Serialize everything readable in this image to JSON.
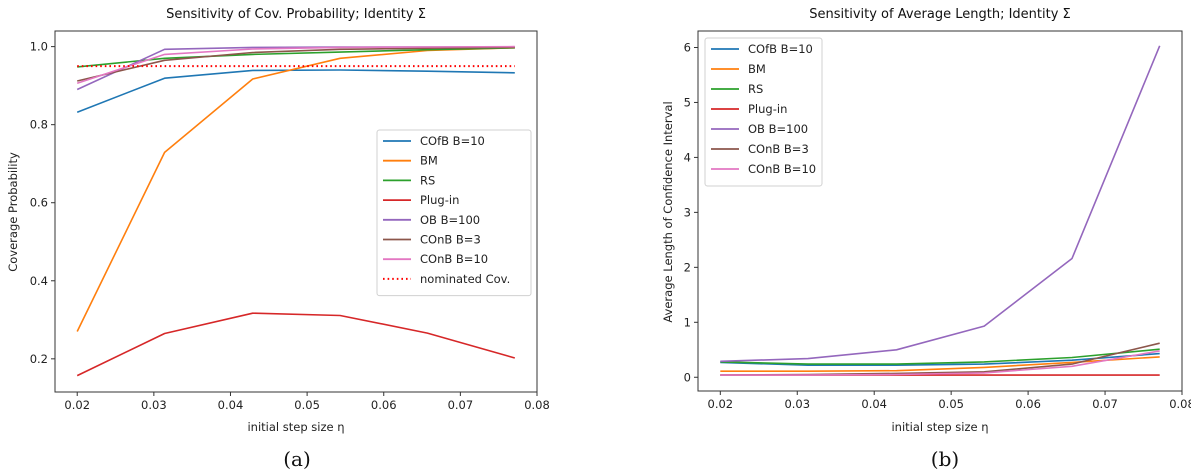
{
  "chart_data": [
    {
      "type": "line",
      "title": "Sensitivity of Cov. Probability; Identity Σ",
      "xlabel": "initial step size η",
      "ylabel": "Coverage Probability",
      "caption": "(a)",
      "xlim": [
        0.0171,
        0.08
      ],
      "ylim": [
        0.115,
        1.04
      ],
      "xticks": [
        0.02,
        0.03,
        0.04,
        0.05,
        0.06,
        0.07,
        0.08
      ],
      "xtick_labels": [
        "0.02",
        "0.03",
        "0.04",
        "0.05",
        "0.06",
        "0.07",
        "0.08"
      ],
      "yticks": [
        0.2,
        0.4,
        0.6,
        0.8,
        1.0
      ],
      "ytick_labels": [
        "0.2",
        "0.4",
        "0.6",
        "0.8",
        "1.0"
      ],
      "grid": false,
      "legend_position": "center-right",
      "x": [
        0.02,
        0.0314,
        0.0429,
        0.0543,
        0.0657,
        0.0771
      ],
      "series": [
        {
          "name": "COfB B=10",
          "color": "#1f77b4",
          "style": "solid",
          "values": [
            0.832,
            0.919,
            0.939,
            0.94,
            0.937,
            0.933
          ]
        },
        {
          "name": "BM",
          "color": "#ff7f0e",
          "style": "solid",
          "values": [
            0.27,
            0.729,
            0.917,
            0.97,
            0.99,
            0.997
          ]
        },
        {
          "name": "RS",
          "color": "#2ca02c",
          "style": "solid",
          "values": [
            0.948,
            0.97,
            0.98,
            0.986,
            0.992,
            0.997
          ]
        },
        {
          "name": "Plug-in",
          "color": "#d62728",
          "style": "solid",
          "values": [
            0.157,
            0.265,
            0.317,
            0.311,
            0.266,
            0.202
          ]
        },
        {
          "name": "OB B=100",
          "color": "#9467bd",
          "style": "solid",
          "values": [
            0.89,
            0.993,
            0.998,
            0.999,
            0.999,
            0.999
          ]
        },
        {
          "name": "COnB B=3",
          "color": "#8c564b",
          "style": "solid",
          "values": [
            0.912,
            0.965,
            0.985,
            0.993,
            0.996,
            0.998
          ]
        },
        {
          "name": "COnB B=10",
          "color": "#e377c2",
          "style": "solid",
          "values": [
            0.906,
            0.98,
            0.994,
            0.998,
            0.999,
            1.0
          ]
        },
        {
          "name": "nominated Cov.",
          "color": "#ff0000",
          "style": "dotted",
          "values": [
            0.95,
            0.95,
            0.95,
            0.95,
            0.95,
            0.95
          ]
        }
      ]
    },
    {
      "type": "line",
      "title": "Sensitivity of Average Length; Identity Σ",
      "xlabel": "initial step size η",
      "ylabel": "Average Length of Confidence Interval",
      "caption": "(b)",
      "xlim": [
        0.0171,
        0.08
      ],
      "ylim": [
        -0.25,
        6.3
      ],
      "xticks": [
        0.02,
        0.03,
        0.04,
        0.05,
        0.06,
        0.07,
        0.08
      ],
      "xtick_labels": [
        "0.02",
        "0.03",
        "0.04",
        "0.05",
        "0.06",
        "0.07",
        "0.08"
      ],
      "yticks": [
        0,
        1,
        2,
        3,
        4,
        5,
        6
      ],
      "ytick_labels": [
        "0",
        "1",
        "2",
        "3",
        "4",
        "5",
        "6"
      ],
      "grid": false,
      "legend_position": "top-left",
      "x": [
        0.02,
        0.0314,
        0.0429,
        0.0543,
        0.0657,
        0.0771
      ],
      "series": [
        {
          "name": "COfB B=10",
          "color": "#1f77b4",
          "style": "solid",
          "values": [
            0.27,
            0.22,
            0.22,
            0.24,
            0.31,
            0.43
          ]
        },
        {
          "name": "BM",
          "color": "#ff7f0e",
          "style": "solid",
          "values": [
            0.11,
            0.11,
            0.12,
            0.18,
            0.27,
            0.37
          ]
        },
        {
          "name": "RS",
          "color": "#2ca02c",
          "style": "solid",
          "values": [
            0.28,
            0.24,
            0.24,
            0.28,
            0.36,
            0.51
          ]
        },
        {
          "name": "Plug-in",
          "color": "#d62728",
          "style": "solid",
          "values": [
            0.04,
            0.04,
            0.04,
            0.04,
            0.04,
            0.04
          ]
        },
        {
          "name": "OB B=100",
          "color": "#9467bd",
          "style": "solid",
          "values": [
            0.29,
            0.34,
            0.5,
            0.93,
            2.16,
            6.03
          ]
        },
        {
          "name": "COnB B=3",
          "color": "#8c564b",
          "style": "solid",
          "values": [
            0.04,
            0.05,
            0.07,
            0.1,
            0.24,
            0.62
          ]
        },
        {
          "name": "COnB B=10",
          "color": "#e377c2",
          "style": "solid",
          "values": [
            0.04,
            0.04,
            0.05,
            0.08,
            0.2,
            0.48
          ]
        }
      ]
    }
  ]
}
